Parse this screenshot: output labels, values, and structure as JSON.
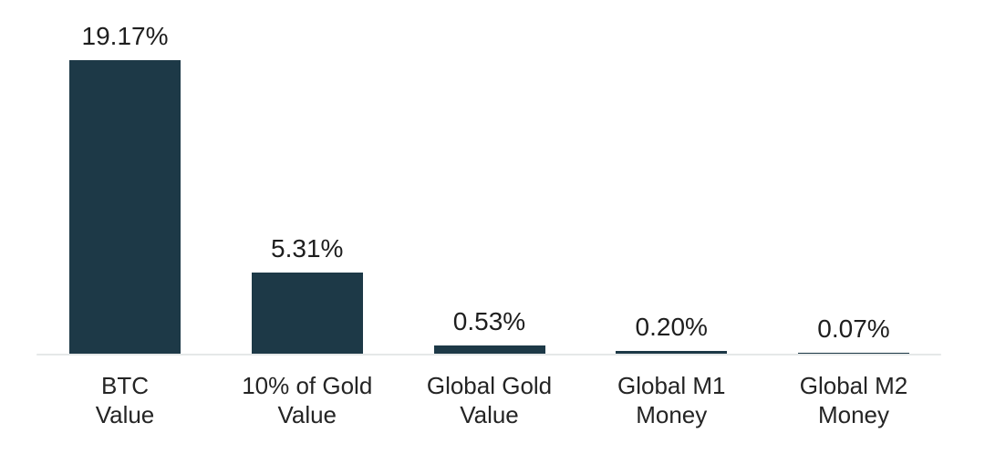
{
  "page": {
    "background_color": "#ffffff"
  },
  "chart_data": {
    "type": "bar",
    "title": "",
    "xlabel": "",
    "ylabel": "",
    "categories": [
      [
        "BTC",
        "Value"
      ],
      [
        "10% of Gold",
        "Value"
      ],
      [
        "Global Gold",
        "Value"
      ],
      [
        "Global M1",
        "Money"
      ],
      [
        "Global M2",
        "Money"
      ]
    ],
    "values": [
      19.17,
      5.31,
      0.53,
      0.2,
      0.07
    ],
    "value_labels": [
      "19.17%",
      "5.31%",
      "0.53%",
      "0.20%",
      "0.07%"
    ],
    "ylim": [
      0,
      20
    ],
    "grid": false,
    "legend": false,
    "axis_ticks_visible": false,
    "bar_color": "#1d3947",
    "axis_line_color": "#e5e8e8",
    "value_label_color": "#1e1e1e",
    "category_label_color": "#242424"
  }
}
